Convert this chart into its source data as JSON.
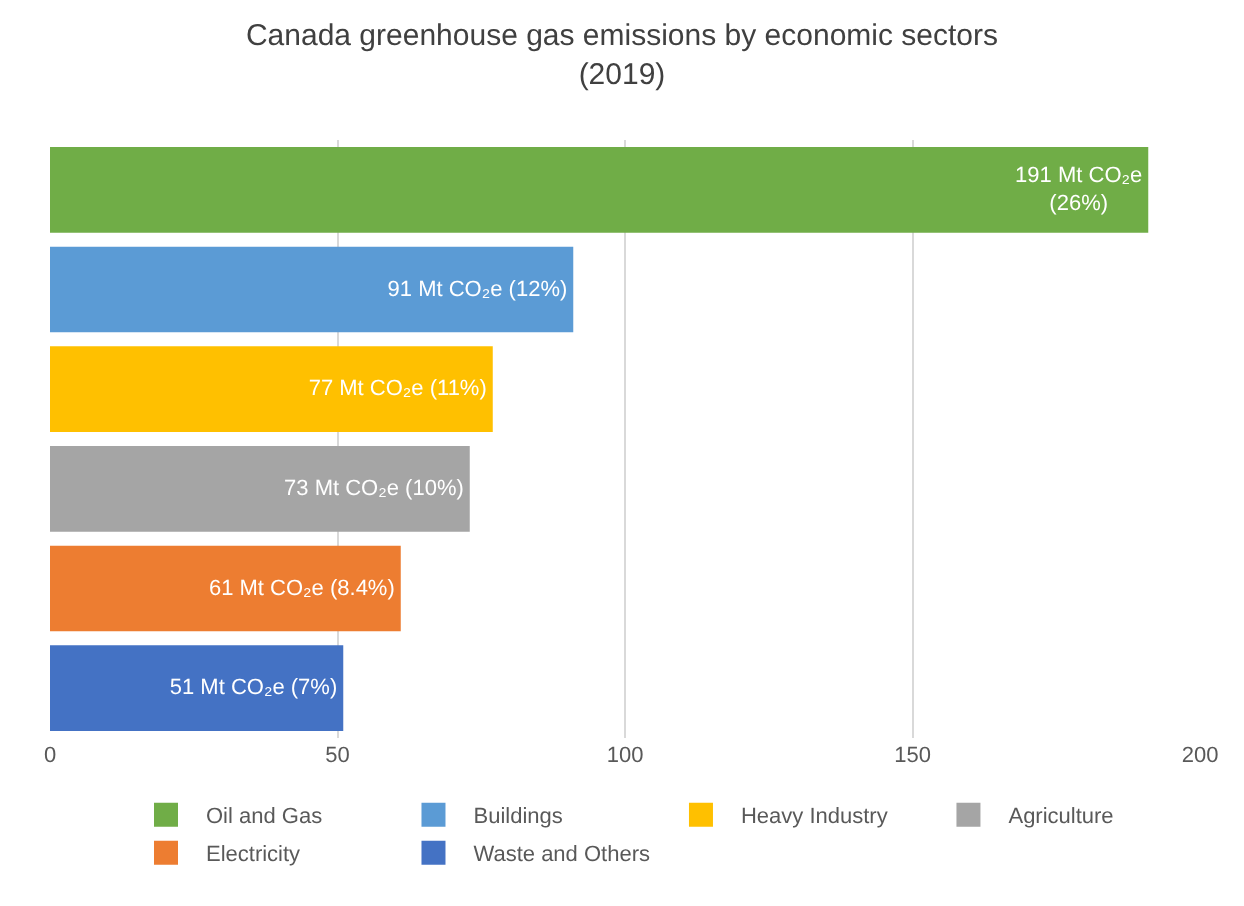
{
  "chart_data": {
    "type": "bar",
    "orientation": "horizontal",
    "title": "Canada greenhouse gas emissions by economic sectors\n(2019)",
    "categories": [
      null,
      null,
      null,
      null,
      null,
      null
    ],
    "series": [
      {
        "name": "Oil and Gas",
        "color": "#70ad47",
        "values": [
          191,
          null,
          null,
          null,
          null,
          null
        ],
        "value_labels": [
          "191 Mt CO₂e\n(26%)",
          null,
          null,
          null,
          null,
          null
        ]
      },
      {
        "name": "Buildings",
        "color": "#5b9bd5",
        "values": [
          null,
          91,
          null,
          null,
          null,
          null
        ],
        "value_labels": [
          null,
          "91 Mt CO₂e (12%)",
          null,
          null,
          null,
          null
        ]
      },
      {
        "name": "Heavy Industry",
        "color": "#ffc000",
        "values": [
          null,
          null,
          77,
          null,
          null,
          null
        ],
        "value_labels": [
          null,
          null,
          "77 Mt CO₂e (11%)",
          null,
          null,
          null
        ]
      },
      {
        "name": "Agriculture",
        "color": "#a5a5a5",
        "values": [
          null,
          null,
          null,
          73,
          null,
          null
        ],
        "value_labels": [
          null,
          null,
          null,
          "73 Mt CO₂e (10%)",
          null,
          null
        ]
      },
      {
        "name": "Electricity",
        "color": "#ed7d31",
        "values": [
          null,
          null,
          null,
          null,
          61,
          null
        ],
        "value_labels": [
          null,
          null,
          null,
          null,
          "61 Mt CO₂e (8.4%)",
          null
        ]
      },
      {
        "name": "Waste and Others",
        "color": "#4472c4",
        "values": [
          null,
          null,
          null,
          null,
          null,
          51
        ],
        "value_labels": [
          null,
          null,
          null,
          null,
          null,
          "51 Mt CO₂e (7%)"
        ]
      }
    ],
    "xlim": [
      0,
      200
    ],
    "xticks": [
      0,
      50,
      100,
      150,
      200
    ],
    "grid": "x",
    "legend": "bottom"
  }
}
